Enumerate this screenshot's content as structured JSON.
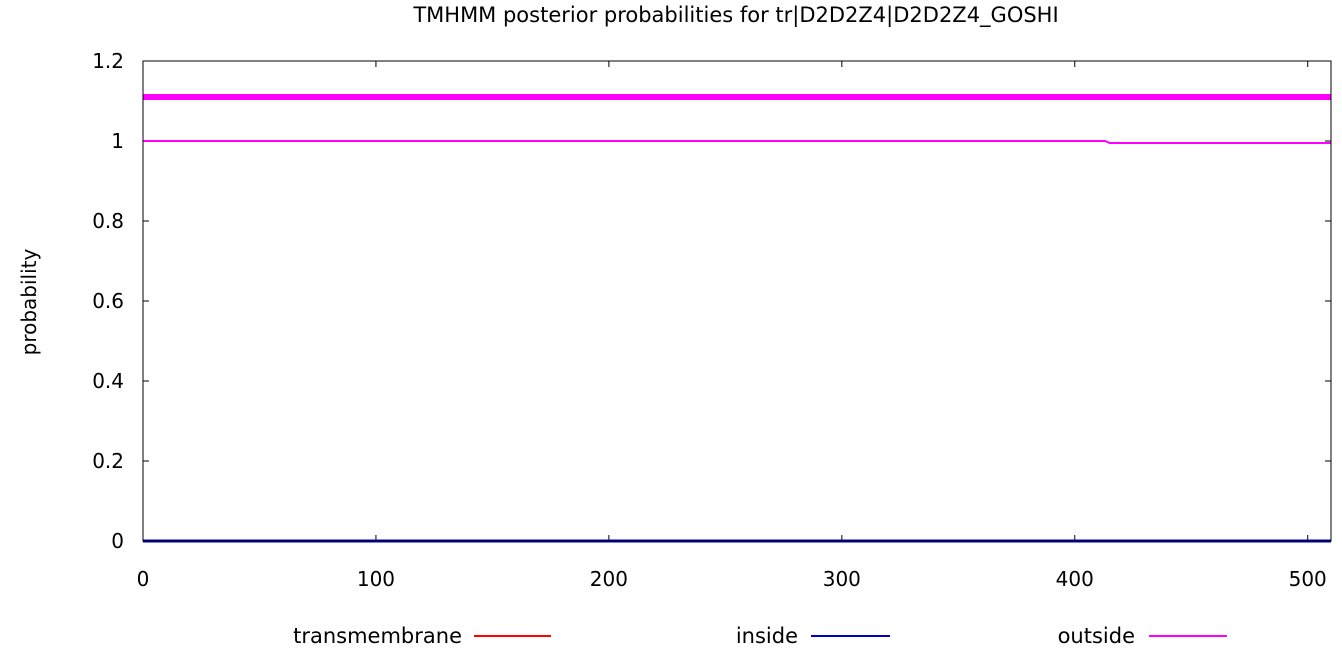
{
  "chart_data": {
    "type": "line",
    "title": "TMHMM posterior probabilities for tr|D2D2Z4|D2D2Z4_GOSHI",
    "xlabel": "",
    "ylabel": "probability",
    "xlim": [
      0,
      510
    ],
    "ylim": [
      0,
      1.2
    ],
    "x_ticks": [
      0,
      100,
      200,
      300,
      400,
      500
    ],
    "x_tick_labels": [
      "0",
      "100",
      "200",
      "300",
      "400",
      "500"
    ],
    "y_ticks": [
      0,
      0.2,
      0.4,
      0.6,
      0.8,
      1,
      1.2
    ],
    "y_tick_labels": [
      "0",
      "0.2",
      "0.4",
      "0.6",
      "0.8",
      "1",
      "1.2"
    ],
    "grid": false,
    "legend_position": "bottom",
    "series": [
      {
        "name": "transmembrane",
        "color": "#ff0000",
        "x": [
          0,
          510
        ],
        "y": [
          0,
          0
        ]
      },
      {
        "name": "inside",
        "color": "#0000cc",
        "x": [
          0,
          510
        ],
        "y": [
          0,
          0
        ]
      },
      {
        "name": "outside",
        "color": "#ff00ff",
        "x": [
          0,
          413,
          415,
          510
        ],
        "y": [
          1,
          1,
          0.995,
          0.995
        ]
      }
    ],
    "topology_bar": {
      "label": "outside",
      "color": "#ff00ff",
      "y": 1.11,
      "x": [
        0,
        510
      ]
    }
  }
}
